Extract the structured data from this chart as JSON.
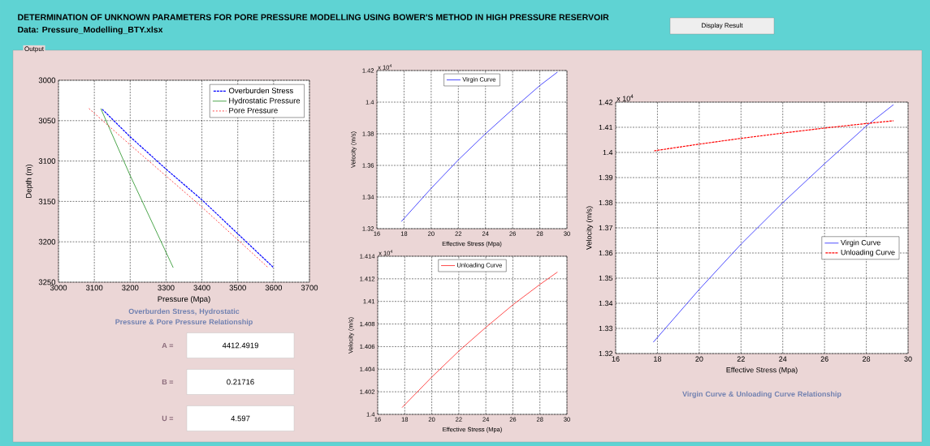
{
  "chart_data": [
    {
      "type": "other",
      "title": "DETERMINATION OF UNKNOWN PARAMETERS FOR PORE PRESSURE MODELLING USING BOWER'S METHOD IN HIGH PRESSURE RESERVOIR",
      "subtitle": "Data: Pressure_Modelling_BTY.xlsx",
      "annotations": [
        "Display Result",
        "Output",
        "A =",
        "4412.4919",
        "B =",
        "0.21716",
        "U =",
        "4.597"
      ]
    },
    {
      "type": "line",
      "title": "Overburden Stress, Hydrostatic Pressure & Pore Pressure Relationship",
      "xlabel": "Pressure (Mpa)",
      "ylabel": "Depth (m)",
      "xlim": [
        3000,
        3700
      ],
      "xticks": [
        3000,
        3100,
        3200,
        3300,
        3400,
        3500,
        3600,
        3700
      ],
      "ylim": [
        3250,
        3000
      ],
      "yticks": [
        3000,
        3050,
        3100,
        3150,
        3200,
        3250
      ],
      "grid": true,
      "legend": "top right",
      "series": [
        {
          "name": "Overburden Stress",
          "color": "#0000ff",
          "line_style": "dashed",
          "x": [
            3120,
            3200,
            3300,
            3400,
            3500,
            3600
          ],
          "values": [
            3035,
            3070,
            3110,
            3148,
            3190,
            3232
          ]
        },
        {
          "name": "Hydrostatic Pressure",
          "color": "#008000",
          "line_style": "solid",
          "x": [
            3118,
            3200,
            3320
          ],
          "values": [
            3035,
            3118,
            3232
          ]
        },
        {
          "name": "Pore Pressure",
          "color": "#ff0000",
          "line_style": "dotted",
          "x": [
            3085,
            3200,
            3400,
            3585
          ],
          "values": [
            3035,
            3080,
            3157,
            3232
          ]
        }
      ]
    },
    {
      "type": "line",
      "xlabel": "Effective Stress (Mpa)",
      "ylabel": "Velocity (m/s)",
      "annotations": [
        "x 10$^{4}$"
      ],
      "xlim": [
        16,
        30
      ],
      "xticks": [
        16,
        18,
        20,
        22,
        24,
        26,
        28,
        30
      ],
      "ylim": [
        1.32,
        1.42
      ],
      "yticks": [
        1.32,
        1.34,
        1.36,
        1.38,
        1.4,
        1.42
      ],
      "grid": true,
      "legend": "top",
      "series": [
        {
          "name": "Virgin Curve",
          "color": "#0000ff",
          "line_style": "solid",
          "x": [
            17.8,
            20,
            22,
            24,
            26,
            28,
            29.3
          ],
          "values": [
            1.3245,
            1.3455,
            1.3635,
            1.38,
            1.3955,
            1.4105,
            1.419
          ]
        }
      ]
    },
    {
      "type": "line",
      "xlabel": "Effective Stress (Mpa)",
      "ylabel": "Velocity (m/s)",
      "annotations": [
        "x 10$^{4}$"
      ],
      "xlim": [
        16,
        30
      ],
      "xticks": [
        16,
        18,
        20,
        22,
        24,
        26,
        28,
        30
      ],
      "ylim": [
        1.4,
        1.414
      ],
      "yticks": [
        1.4,
        1.402,
        1.404,
        1.406,
        1.408,
        1.41,
        1.412,
        1.414
      ],
      "grid": true,
      "legend": "top",
      "series": [
        {
          "name": "Unloading Curve",
          "color": "#ff0000",
          "line_style": "solid",
          "x": [
            17.8,
            20,
            22,
            24,
            26,
            28,
            29.3
          ],
          "values": [
            1.4006,
            1.4033,
            1.4056,
            1.4077,
            1.4097,
            1.4115,
            1.4126
          ]
        }
      ]
    },
    {
      "type": "line",
      "title": "Virgin Curve & Unloading Curve Relationship",
      "xlabel": "Effective Stress (Mpa)",
      "ylabel": "Velocity (m/s)",
      "annotations": [
        "x 10$^{4}$"
      ],
      "xlim": [
        16,
        30
      ],
      "xticks": [
        16,
        18,
        20,
        22,
        24,
        26,
        28,
        30
      ],
      "ylim": [
        1.32,
        1.42
      ],
      "yticks": [
        1.32,
        1.33,
        1.34,
        1.35,
        1.36,
        1.37,
        1.38,
        1.39,
        1.4,
        1.41,
        1.42
      ],
      "grid": true,
      "legend": "right",
      "series": [
        {
          "name": "Virgin Curve",
          "color": "#0000ff",
          "line_style": "solid",
          "x": [
            17.8,
            20,
            22,
            24,
            26,
            28,
            29.3
          ],
          "values": [
            1.3245,
            1.3455,
            1.3635,
            1.38,
            1.3955,
            1.4105,
            1.419
          ]
        },
        {
          "name": "Unloading Curve",
          "color": "#ff0000",
          "line_style": "dashed",
          "x": [
            17.8,
            20,
            22,
            24,
            26,
            28,
            29.3
          ],
          "values": [
            1.4006,
            1.4033,
            1.4056,
            1.4077,
            1.4097,
            1.4115,
            1.4126
          ]
        }
      ]
    }
  ]
}
